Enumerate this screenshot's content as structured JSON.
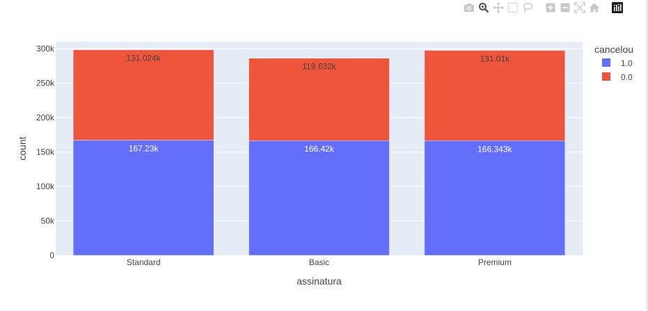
{
  "modebar": {
    "buttons": [
      {
        "icon": "camera-icon",
        "title": "Download plot as a png"
      },
      {
        "icon": "zoom-icon",
        "title": "Zoom"
      },
      {
        "icon": "pan-icon",
        "title": "Pan"
      },
      {
        "icon": "box-select-icon",
        "title": "Box Select"
      },
      {
        "icon": "lasso-select-icon",
        "title": "Lasso Select"
      },
      {
        "icon": "zoom-in-icon",
        "title": "Zoom in"
      },
      {
        "icon": "zoom-out-icon",
        "title": "Zoom out"
      },
      {
        "icon": "autoscale-icon",
        "title": "Autoscale"
      },
      {
        "icon": "home-icon",
        "title": "Reset axes"
      },
      {
        "icon": "plotly-logo-icon",
        "title": "Produced with Plotly"
      }
    ]
  },
  "chart_data": {
    "type": "bar",
    "barmode": "stack",
    "categories": [
      "Standard",
      "Basic",
      "Premium"
    ],
    "series": [
      {
        "name": "1.0",
        "values": [
          167230,
          166420,
          166343
        ],
        "labels": [
          "167.23k",
          "166.42k",
          "166.343k"
        ],
        "color": "#636efa"
      },
      {
        "name": "0.0",
        "values": [
          131024,
          119632,
          131010
        ],
        "labels": [
          "131.024k",
          "119.632k",
          "131.01k"
        ],
        "color": "#ef553b"
      }
    ],
    "xlabel": "assinatura",
    "ylabel": "count",
    "ylim": [
      0,
      310000
    ],
    "yticks": [
      0,
      50000,
      100000,
      150000,
      200000,
      250000,
      300000
    ],
    "ytick_labels": [
      "0",
      "50k",
      "100k",
      "150k",
      "200k",
      "250k",
      "300k"
    ],
    "legend_title": "cancelou",
    "legend_position": "top-right",
    "grid": true,
    "plot_bgcolor": "#e5ecf6"
  }
}
